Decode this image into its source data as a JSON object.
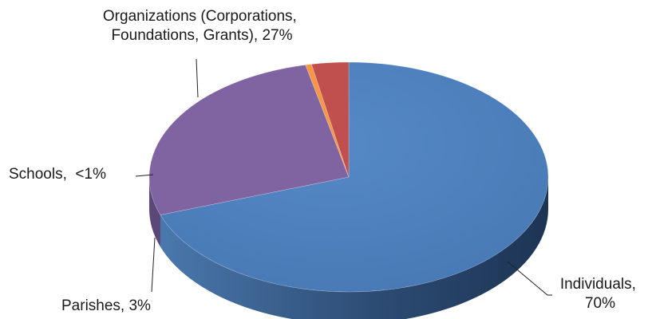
{
  "chart_data": {
    "type": "pie",
    "style": "3d",
    "title": "",
    "legend": "none",
    "categories": [
      "Individuals",
      "Organizations (Corporations, Foundations, Grants)",
      "Schools",
      "Parishes"
    ],
    "values": [
      70,
      27,
      0.5,
      3
    ],
    "colors": [
      "#4F81BD",
      "#8064A2",
      "#F79646",
      "#C0504D"
    ],
    "labels": {
      "individuals": [
        "Individuals,",
        "70%"
      ],
      "organizations": [
        "Organizations (Corporations,",
        "Foundations, Grants), 27%"
      ],
      "schools": [
        "Schools,  <1%"
      ],
      "parishes": [
        "Parishes, 3%"
      ]
    }
  }
}
